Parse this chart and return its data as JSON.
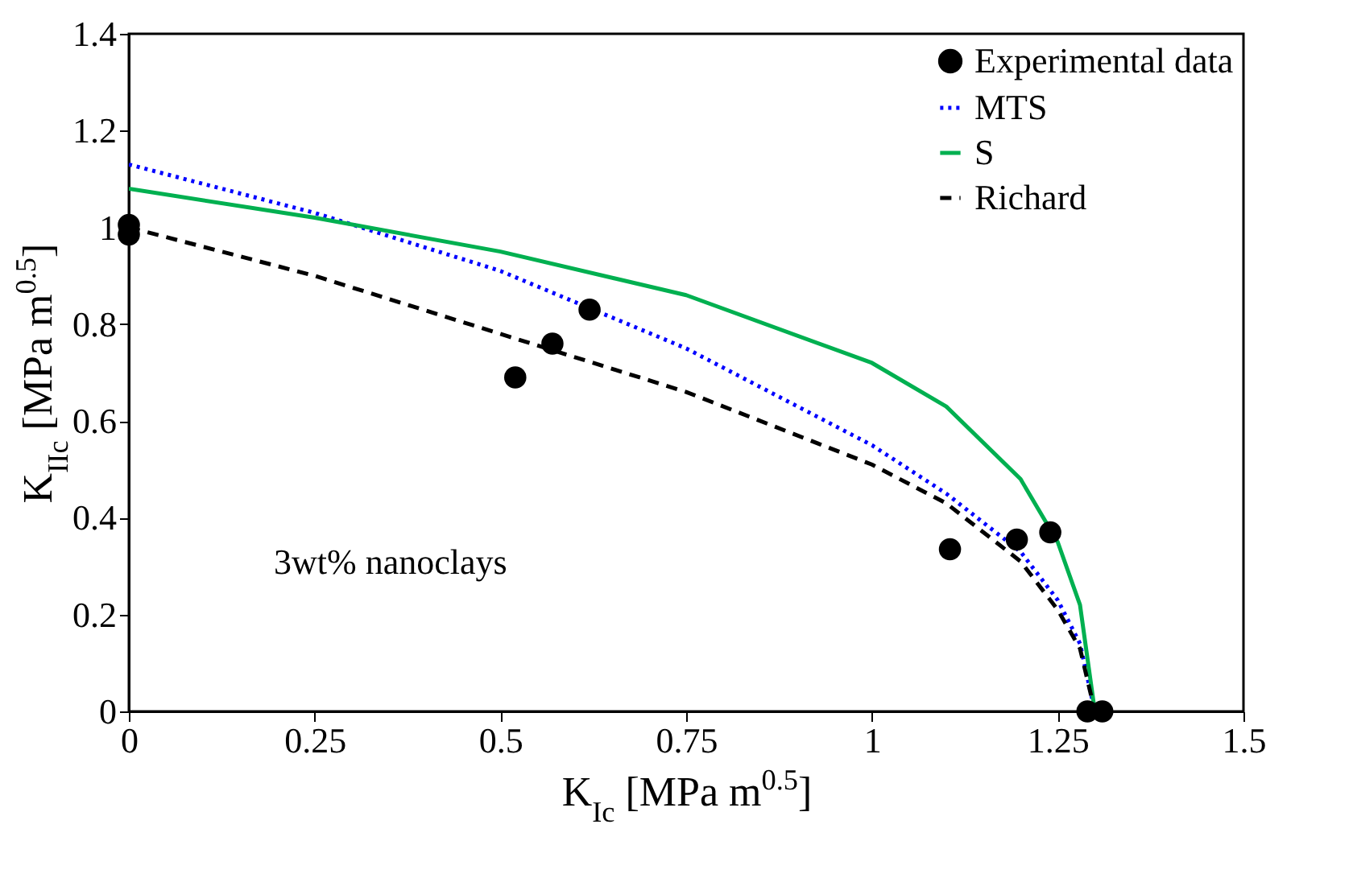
{
  "chart_data": {
    "type": "line",
    "xlabel": "K$_{Ic}$ [MPa m$^{0.5}$]",
    "ylabel": "K$_{IIc}$ [MPa m$^{0.5}$]",
    "xlim": [
      0,
      1.5
    ],
    "ylim": [
      0,
      1.4
    ],
    "xticks": [
      0,
      0.25,
      0.5,
      0.75,
      1,
      1.25,
      1.5
    ],
    "yticks": [
      0,
      0.2,
      0.4,
      0.6,
      0.8,
      1,
      1.2,
      1.4
    ],
    "grid": false,
    "legend": "top right",
    "annotations": [
      "3wt% nanoclays"
    ],
    "series": [
      {
        "name": "Experimental data",
        "type": "scatter",
        "marker": "circle",
        "color": "#000000",
        "x": [
          0,
          0,
          0.52,
          0.57,
          0.62,
          1.105,
          1.195,
          1.24,
          1.29,
          1.31
        ],
        "values": [
          1.005,
          0.985,
          0.69,
          0.76,
          0.83,
          0.335,
          0.355,
          0.37,
          0,
          0
        ]
      },
      {
        "name": "MTS",
        "type": "line",
        "line_style": "dotted",
        "color": "#0000ff",
        "x": [
          0,
          0.25,
          0.5,
          0.75,
          1,
          1.1,
          1.2,
          1.25,
          1.28,
          1.3
        ],
        "values": [
          1.13,
          1.03,
          0.91,
          0.75,
          0.55,
          0.45,
          0.33,
          0.23,
          0.14,
          0
        ]
      },
      {
        "name": "S",
        "type": "line",
        "line_style": "solid",
        "color": "#00b050",
        "x": [
          0,
          0.25,
          0.5,
          0.75,
          1,
          1.1,
          1.2,
          1.25,
          1.28,
          1.3
        ],
        "values": [
          1.08,
          1.02,
          0.95,
          0.86,
          0.72,
          0.63,
          0.48,
          0.35,
          0.22,
          0
        ]
      },
      {
        "name": "Richard",
        "type": "line",
        "line_style": "dashed",
        "color": "#000000",
        "x": [
          0,
          0.25,
          0.5,
          0.75,
          1,
          1.1,
          1.2,
          1.25,
          1.28,
          1.3
        ],
        "values": [
          1.0,
          0.9,
          0.78,
          0.66,
          0.51,
          0.43,
          0.31,
          0.21,
          0.13,
          0
        ]
      }
    ]
  }
}
